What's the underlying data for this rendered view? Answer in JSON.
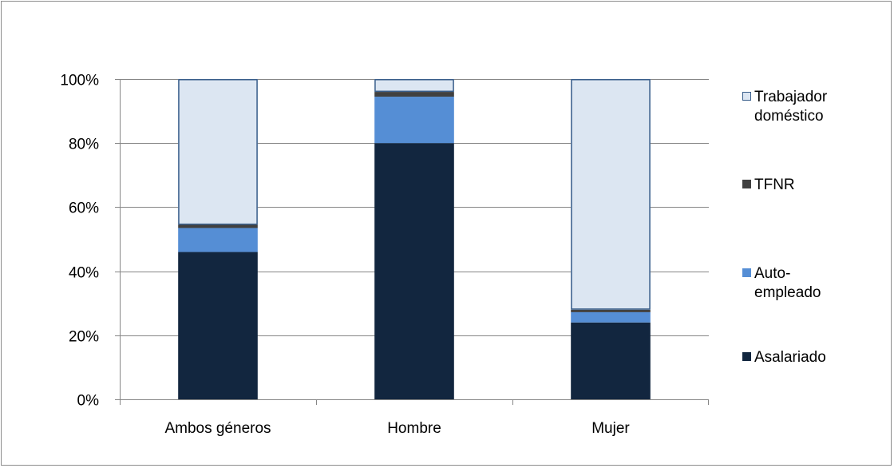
{
  "chart_data": {
    "type": "bar",
    "stacked": true,
    "percent": true,
    "categories": [
      "Ambos géneros",
      "Hombre",
      "Mujer"
    ],
    "series": [
      {
        "name": "Asalariado",
        "values": [
          46,
          80,
          24
        ],
        "color": "#12263f"
      },
      {
        "name": "Auto-empleado",
        "values": [
          7.5,
          14.5,
          3.2
        ],
        "color": "#558ed5"
      },
      {
        "name": "TFNR",
        "values": [
          1,
          1.5,
          0.8
        ],
        "color": "#404040"
      },
      {
        "name": "Trabajador doméstico",
        "values": [
          45.5,
          4,
          72
        ],
        "color": "#dce6f2"
      }
    ],
    "legend_labels": [
      {
        "series": "Trabajador doméstico",
        "lines": [
          "Trabajador",
          "doméstico"
        ]
      },
      {
        "series": "TFNR",
        "lines": [
          "TFNR"
        ]
      },
      {
        "series": "Auto-empleado",
        "lines": [
          "Auto-",
          "empleado"
        ]
      },
      {
        "series": "Asalariado",
        "lines": [
          "Asalariado"
        ]
      }
    ],
    "yticks": [
      "0%",
      "20%",
      "40%",
      "60%",
      "80%",
      "100%"
    ],
    "ylim": [
      0,
      100
    ],
    "grid": true,
    "legend_position": "right",
    "bar_outline_color": "#385d8a",
    "gridline_color": "#868686"
  }
}
